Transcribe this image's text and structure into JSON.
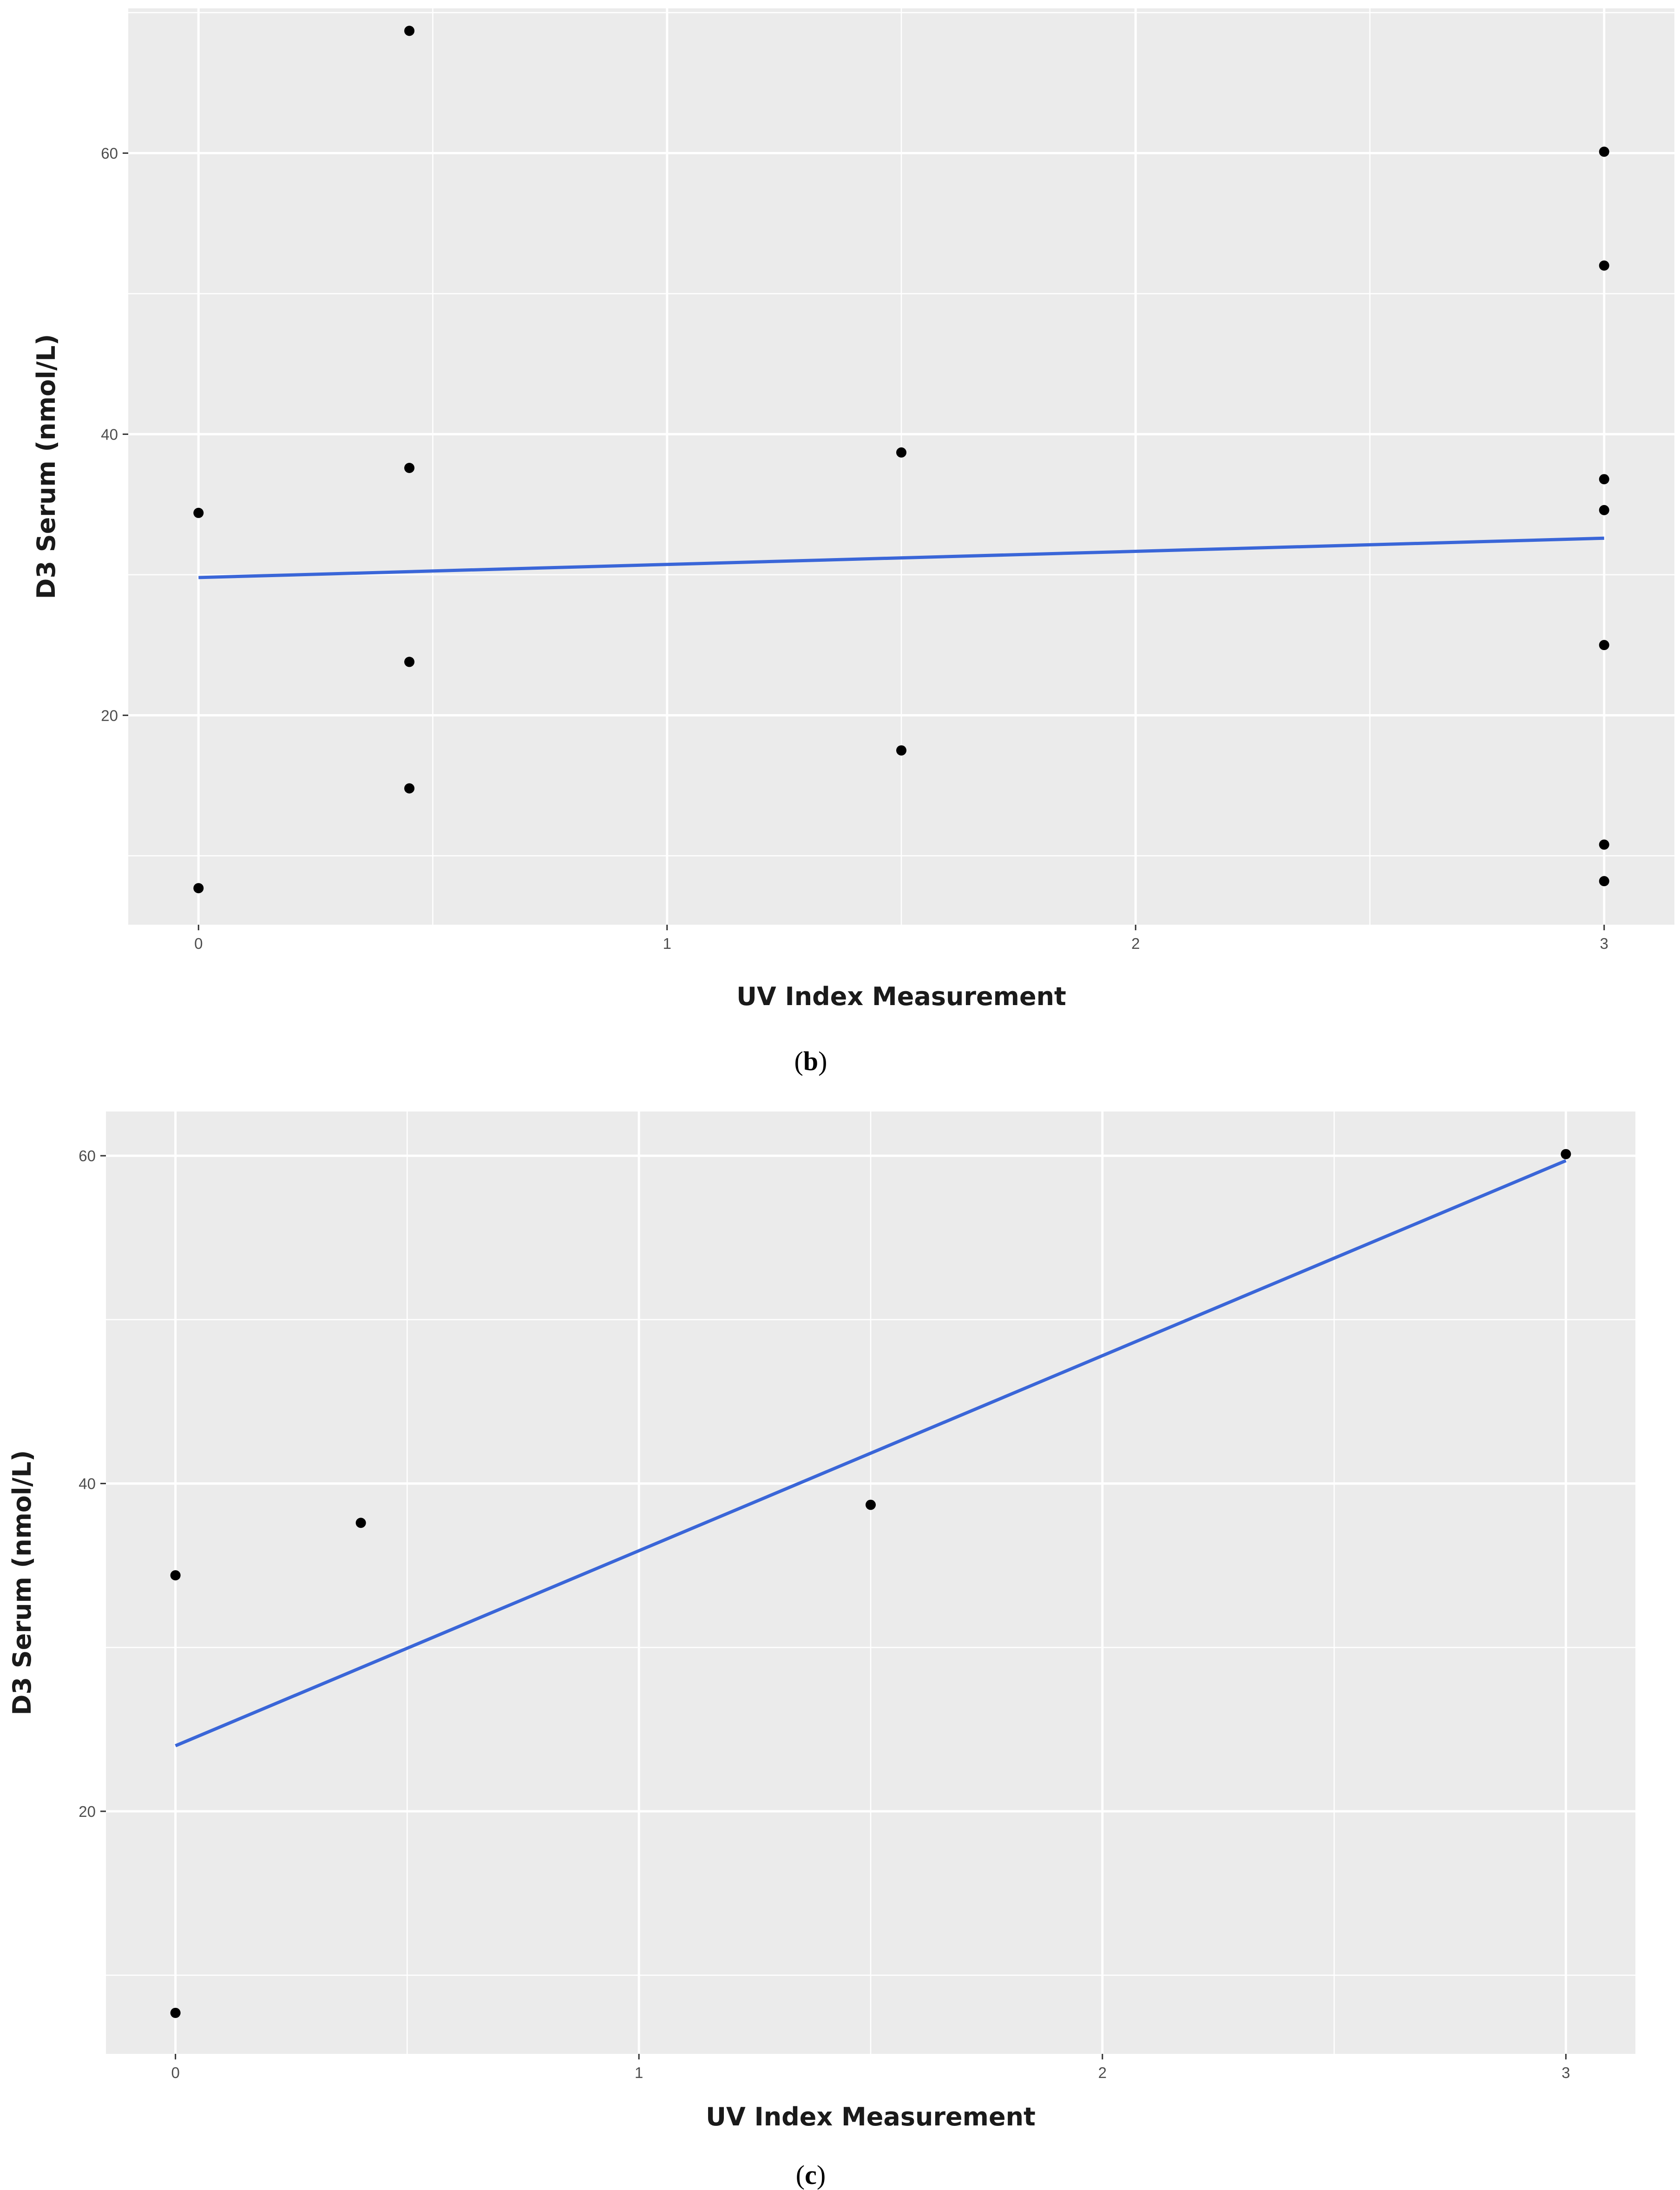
{
  "chart_data": [
    {
      "type": "scatter",
      "panel_label": "b",
      "xlabel": "UV Index Measurement",
      "ylabel": "D3 Serum (nmol/L)",
      "x_ticks": [
        "0",
        "1",
        "2",
        "3"
      ],
      "y_ticks": [
        "20",
        "40",
        "60"
      ],
      "xlim": [
        -0.15,
        3.15
      ],
      "ylim": [
        5.1,
        70.3
      ],
      "grid": true,
      "points": [
        {
          "x": 0,
          "y": 34.4
        },
        {
          "x": 0,
          "y": 7.7
        },
        {
          "x": 0.45,
          "y": 68.7
        },
        {
          "x": 0.45,
          "y": 37.6
        },
        {
          "x": 0.45,
          "y": 23.8
        },
        {
          "x": 0.45,
          "y": 14.8
        },
        {
          "x": 1.5,
          "y": 38.7
        },
        {
          "x": 1.5,
          "y": 17.5
        },
        {
          "x": 3,
          "y": 60.1
        },
        {
          "x": 3,
          "y": 52.0
        },
        {
          "x": 3,
          "y": 36.8
        },
        {
          "x": 3,
          "y": 34.6
        },
        {
          "x": 3,
          "y": 25.0
        },
        {
          "x": 3,
          "y": 10.8
        },
        {
          "x": 3,
          "y": 8.2
        }
      ],
      "fit_line": {
        "x": [
          0,
          3
        ],
        "y": [
          29.8,
          32.6
        ]
      },
      "colors": {
        "points": "#000000",
        "fit_line": "#3a66d8",
        "panel_bg": "#ebebeb",
        "grid": "#ffffff"
      }
    },
    {
      "type": "scatter",
      "panel_label": "c",
      "xlabel": "UV Index Measurement",
      "ylabel": "D3 Serum (nmol/L)",
      "x_ticks": [
        "0",
        "1",
        "2",
        "3"
      ],
      "y_ticks": [
        "20",
        "40",
        "60"
      ],
      "xlim": [
        -0.15,
        3.15
      ],
      "ylim": [
        5.2,
        62.7
      ],
      "grid": true,
      "points": [
        {
          "x": 0,
          "y": 34.4
        },
        {
          "x": 0,
          "y": 7.7
        },
        {
          "x": 0.4,
          "y": 37.6
        },
        {
          "x": 1.5,
          "y": 38.7
        },
        {
          "x": 3,
          "y": 60.1
        }
      ],
      "fit_line": {
        "x": [
          0,
          3
        ],
        "y": [
          24.0,
          59.7
        ]
      },
      "colors": {
        "points": "#000000",
        "fit_line": "#3a66d8",
        "panel_bg": "#ebebeb",
        "grid": "#ffffff"
      }
    }
  ]
}
